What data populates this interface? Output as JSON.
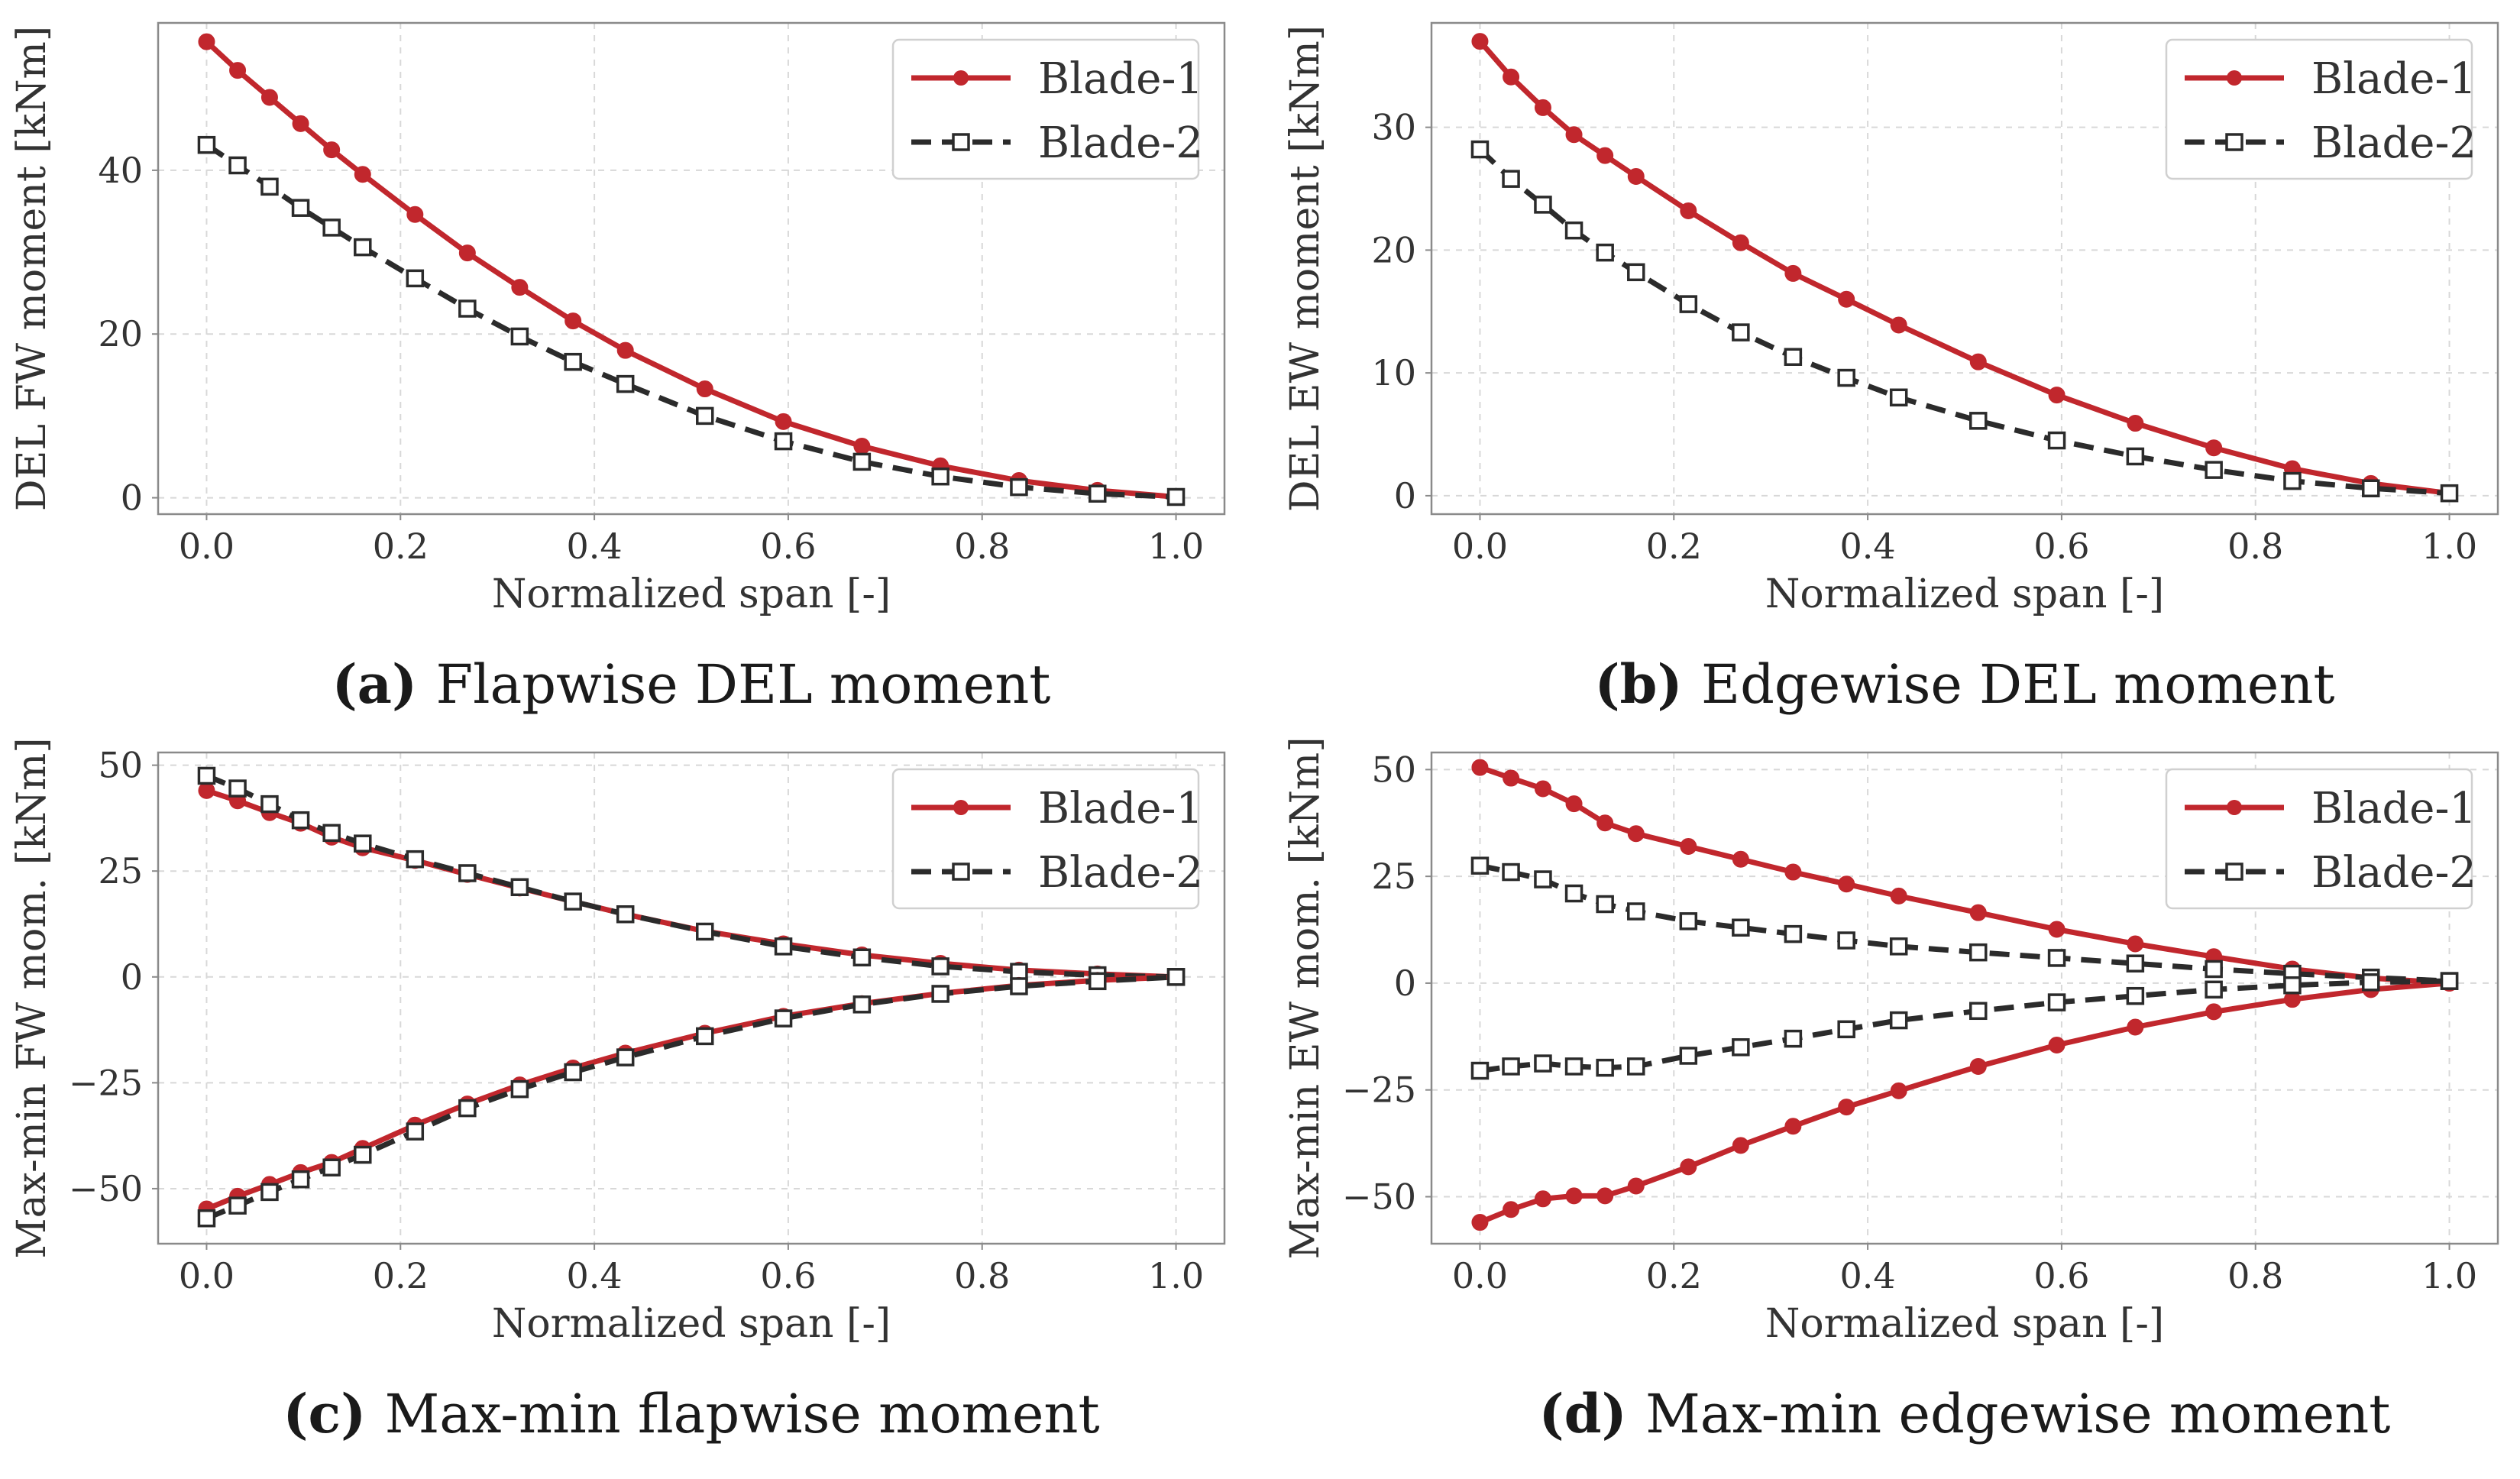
{
  "colors": {
    "blade1": "#c1272d",
    "blade2": "#2b2b2b",
    "grid": "#d8d8d8",
    "text": "#333333"
  },
  "chart_data": [
    {
      "id": "a",
      "type": "line",
      "caption_letter": "(a)",
      "caption_text": "Flapwise DEL moment",
      "xlabel": "Normalized span [-]",
      "ylabel": "DEL FW moment [kNm]",
      "xlim": [
        -0.05,
        1.05
      ],
      "ylim": [
        -2,
        58
      ],
      "xticks": [
        0.0,
        0.2,
        0.4,
        0.6,
        0.8,
        1.0
      ],
      "xtick_labels": [
        "0.0",
        "0.2",
        "0.4",
        "0.6",
        "0.8",
        "1.0"
      ],
      "yticks": [
        0,
        20,
        40
      ],
      "ytick_labels": [
        "0",
        "20",
        "40"
      ],
      "legend_position": "top-right",
      "x": [
        0.0,
        0.032,
        0.065,
        0.097,
        0.129,
        0.161,
        0.215,
        0.269,
        0.323,
        0.378,
        0.432,
        0.514,
        0.595,
        0.676,
        0.757,
        0.838,
        0.919,
        1.0
      ],
      "series": [
        {
          "name": "Blade-1",
          "style": "solid-circle",
          "values": [
            55.7,
            52.2,
            48.9,
            45.7,
            42.5,
            39.5,
            34.6,
            29.9,
            25.7,
            21.6,
            18.0,
            13.3,
            9.3,
            6.3,
            3.9,
            2.1,
            0.9,
            0.1
          ]
        },
        {
          "name": "Blade-2",
          "style": "dashed-square",
          "values": [
            43.1,
            40.6,
            38.0,
            35.4,
            33.0,
            30.6,
            26.8,
            23.1,
            19.7,
            16.6,
            13.9,
            10.0,
            6.9,
            4.4,
            2.6,
            1.3,
            0.5,
            0.1
          ]
        }
      ]
    },
    {
      "id": "b",
      "type": "line",
      "caption_letter": "(b)",
      "caption_text": "Edgewise DEL moment",
      "xlabel": "Normalized span [-]",
      "ylabel": "DEL EW moment [kNm]",
      "xlim": [
        -0.05,
        1.05
      ],
      "ylim": [
        -1.5,
        38.5
      ],
      "xticks": [
        0.0,
        0.2,
        0.4,
        0.6,
        0.8,
        1.0
      ],
      "xtick_labels": [
        "0.0",
        "0.2",
        "0.4",
        "0.6",
        "0.8",
        "1.0"
      ],
      "yticks": [
        0,
        10,
        20,
        30
      ],
      "ytick_labels": [
        "0",
        "10",
        "20",
        "30"
      ],
      "legend_position": "top-right",
      "x": [
        0.0,
        0.032,
        0.065,
        0.097,
        0.129,
        0.161,
        0.215,
        0.269,
        0.323,
        0.378,
        0.432,
        0.514,
        0.595,
        0.676,
        0.757,
        0.838,
        0.919,
        1.0
      ],
      "series": [
        {
          "name": "Blade-1",
          "style": "solid-circle",
          "values": [
            37.0,
            34.1,
            31.6,
            29.4,
            27.7,
            26.0,
            23.2,
            20.6,
            18.1,
            16.0,
            13.9,
            10.9,
            8.2,
            5.9,
            3.9,
            2.2,
            1.0,
            0.2
          ]
        },
        {
          "name": "Blade-2",
          "style": "dashed-square",
          "values": [
            28.2,
            25.8,
            23.7,
            21.6,
            19.8,
            18.2,
            15.6,
            13.3,
            11.3,
            9.6,
            8.0,
            6.1,
            4.5,
            3.2,
            2.1,
            1.2,
            0.6,
            0.2
          ]
        }
      ]
    },
    {
      "id": "c",
      "type": "line",
      "caption_letter": "(c)",
      "caption_text": "Max-min flapwise moment",
      "xlabel": "Normalized span [-]",
      "ylabel": "Max-min FW mom. [kNm]",
      "xlim": [
        -0.05,
        1.05
      ],
      "ylim": [
        -63,
        53
      ],
      "xticks": [
        0.0,
        0.2,
        0.4,
        0.6,
        0.8,
        1.0
      ],
      "xtick_labels": [
        "0.0",
        "0.2",
        "0.4",
        "0.6",
        "0.8",
        "1.0"
      ],
      "yticks": [
        -50,
        -25,
        0,
        25,
        50
      ],
      "ytick_labels": [
        "−50",
        "−25",
        "0",
        "25",
        "50"
      ],
      "legend_position": "top-right",
      "x": [
        0.0,
        0.032,
        0.065,
        0.097,
        0.129,
        0.161,
        0.215,
        0.269,
        0.323,
        0.378,
        0.432,
        0.514,
        0.595,
        0.676,
        0.757,
        0.838,
        0.919,
        1.0
      ],
      "series": [
        {
          "name": "Blade-1",
          "legend": true,
          "style": "solid-circle",
          "values": [
            44.0,
            41.6,
            38.8,
            36.3,
            33.0,
            30.5,
            27.5,
            24.2,
            21.0,
            17.8,
            14.8,
            10.8,
            7.8,
            5.2,
            3.2,
            1.6,
            0.7,
            0.0
          ]
        },
        {
          "name": "Blade-2",
          "legend": true,
          "style": "dashed-square",
          "values": [
            47.5,
            44.5,
            40.8,
            37.0,
            34.0,
            31.5,
            27.8,
            24.5,
            21.2,
            17.8,
            14.8,
            10.7,
            7.2,
            4.6,
            2.5,
            1.2,
            0.4,
            0.0
          ]
        },
        {
          "name": "Blade-1",
          "legend": false,
          "style": "solid-circle",
          "values": [
            -54.8,
            -51.8,
            -49.0,
            -46.2,
            -43.8,
            -40.5,
            -35.0,
            -30.0,
            -25.5,
            -21.5,
            -18.0,
            -13.3,
            -9.3,
            -6.3,
            -3.9,
            -2.0,
            -0.8,
            0.0
          ]
        },
        {
          "name": "Blade-2",
          "legend": false,
          "style": "dashed-square",
          "values": [
            -57.0,
            -54.0,
            -50.8,
            -47.8,
            -45.0,
            -42.0,
            -36.5,
            -31.0,
            -26.5,
            -22.5,
            -19.0,
            -14.0,
            -9.8,
            -6.5,
            -4.0,
            -2.2,
            -1.0,
            0.0
          ]
        }
      ]
    },
    {
      "id": "d",
      "type": "line",
      "caption_letter": "(d)",
      "caption_text": "Max-min edgewise moment",
      "xlabel": "Normalized span [-]",
      "ylabel": "Max-min EW mom. [kNm]",
      "xlim": [
        -0.05,
        1.05
      ],
      "ylim": [
        -61,
        54
      ],
      "xticks": [
        0.0,
        0.2,
        0.4,
        0.6,
        0.8,
        1.0
      ],
      "xtick_labels": [
        "0.0",
        "0.2",
        "0.4",
        "0.6",
        "0.8",
        "1.0"
      ],
      "yticks": [
        -50,
        -25,
        0,
        25,
        50
      ],
      "ytick_labels": [
        "−50",
        "−25",
        "0",
        "25",
        "50"
      ],
      "legend_position": "top-right",
      "x": [
        0.0,
        0.032,
        0.065,
        0.097,
        0.129,
        0.161,
        0.215,
        0.269,
        0.323,
        0.378,
        0.432,
        0.514,
        0.595,
        0.676,
        0.757,
        0.838,
        0.919,
        1.0
      ],
      "series": [
        {
          "name": "Blade-1",
          "legend": true,
          "style": "solid-circle",
          "values": [
            50.5,
            48.0,
            45.5,
            42.0,
            37.5,
            35.0,
            32.0,
            29.0,
            26.0,
            23.2,
            20.4,
            16.5,
            12.6,
            9.2,
            6.2,
            3.3,
            1.2,
            0.0
          ]
        },
        {
          "name": "Blade-2",
          "legend": true,
          "style": "dashed-square",
          "values": [
            27.5,
            26.0,
            24.3,
            21.0,
            18.5,
            16.8,
            14.5,
            13.0,
            11.5,
            10.0,
            8.6,
            7.2,
            5.9,
            4.6,
            3.3,
            2.2,
            1.3,
            0.5
          ]
        },
        {
          "name": "Blade-1",
          "legend": false,
          "style": "solid-circle",
          "values": [
            -56.0,
            -53.0,
            -50.5,
            -49.8,
            -49.8,
            -47.5,
            -43.0,
            -38.0,
            -33.5,
            -29.0,
            -25.2,
            -19.5,
            -14.5,
            -10.3,
            -6.7,
            -3.8,
            -1.5,
            0.0
          ]
        },
        {
          "name": "Blade-2",
          "legend": false,
          "style": "dashed-square",
          "values": [
            -20.5,
            -19.5,
            -18.8,
            -19.5,
            -19.8,
            -19.5,
            -17.0,
            -15.0,
            -13.0,
            -10.8,
            -8.7,
            -6.5,
            -4.5,
            -3.0,
            -1.5,
            -0.5,
            0.2,
            0.5
          ]
        }
      ]
    }
  ]
}
